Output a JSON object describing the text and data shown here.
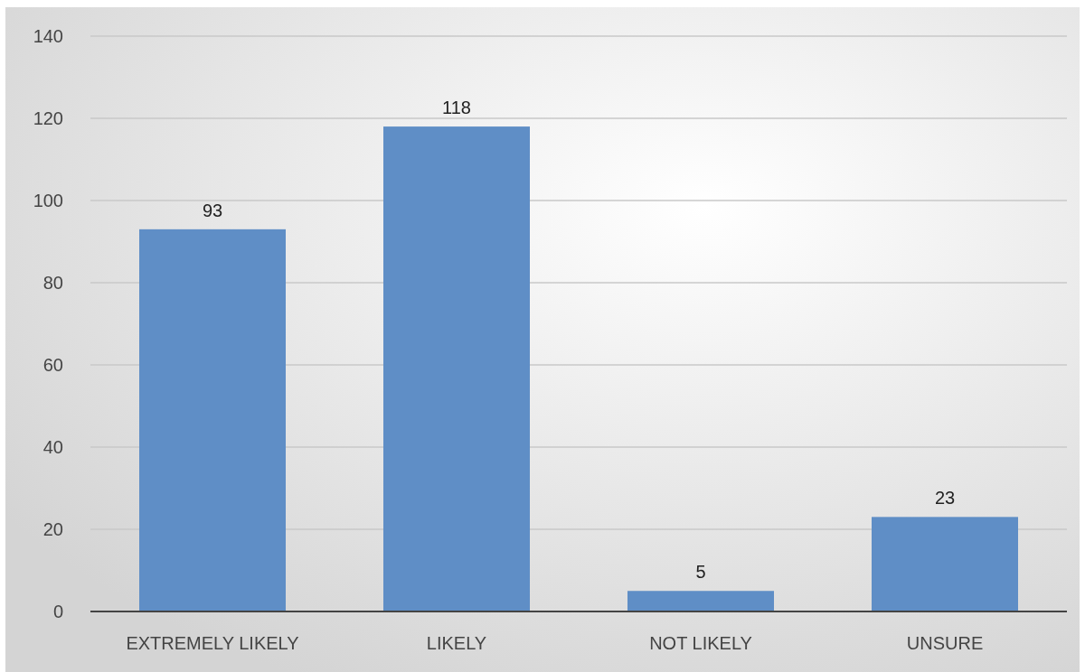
{
  "chart_data": {
    "type": "bar",
    "categories": [
      "EXTREMELY LIKELY",
      "LIKELY",
      "NOT LIKELY",
      "UNSURE"
    ],
    "values": [
      93,
      118,
      5,
      23
    ],
    "color": "#5f8ec6",
    "ylim": [
      0,
      140
    ],
    "yticks": [
      0,
      20,
      40,
      60,
      80,
      100,
      120,
      140
    ],
    "grid": "y",
    "data_labels": true
  }
}
